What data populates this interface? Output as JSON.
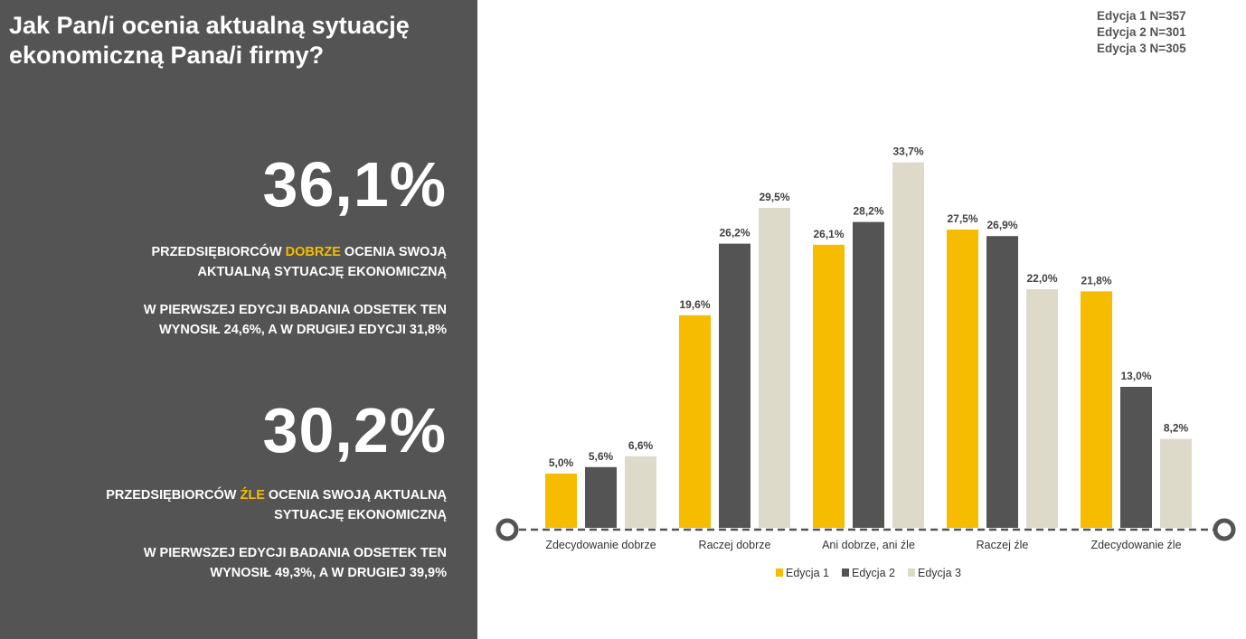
{
  "left_panel": {
    "question": "Jak Pan/i ocenia aktualną sytuację ekonomiczną Pana/i firmy?",
    "stat_good": {
      "value": "36,1%",
      "line1_pre": "PRZEDSIĘBIORCÓW ",
      "line1_highlight": "DOBRZE",
      "line1_post": " OCENIA SWOJĄ",
      "line2": "AKTUALNĄ SYTUACJĘ EKONOMICZNĄ",
      "note_line1": "W PIERWSZEJ EDYCJI BADANIA ODSETEK TEN",
      "note_line2": "WYNOSIŁ 24,6%, A W DRUGIEJ EDYCJI 31,8%"
    },
    "stat_bad": {
      "value": "30,2%",
      "line1_pre": "PRZEDSIĘBIORCÓW ",
      "line1_highlight": "ŹLE",
      "line1_post": " OCENIA SWOJĄ AKTUALNĄ",
      "line2": "SYTUACJĘ EKONOMICZNĄ",
      "note_line1": "W PIERWSZEJ EDYCJI BADANIA ODSETEK TEN",
      "note_line2": "WYNOSIŁ 49,3%, A W DRUGIEJ 39,9%"
    },
    "highlight_color": "#F5BC00",
    "panel_color": "#545454"
  },
  "sample_sizes": [
    "Edycja 1 N=357",
    "Edycja 2 N=301",
    "Edycja 3 N=305"
  ],
  "chart_data": {
    "type": "bar",
    "categories": [
      "Zdecydowanie dobrze",
      "Raczej dobrze",
      "Ani dobrze, ani źle",
      "Raczej źle",
      "Zdecydowanie źle"
    ],
    "series": [
      {
        "name": "Edycja 1",
        "color": "#F5BC00",
        "values": [
          5.0,
          19.6,
          26.1,
          27.5,
          21.8
        ],
        "labels": [
          "5,0%",
          "19,6%",
          "26,1%",
          "27,5%",
          "21,8%"
        ]
      },
      {
        "name": "Edycja 2",
        "color": "#545454",
        "values": [
          5.6,
          26.2,
          28.2,
          26.9,
          13.0
        ],
        "labels": [
          "5,6%",
          "26,2%",
          "28,2%",
          "26,9%",
          "13,0%"
        ]
      },
      {
        "name": "Edycja 3",
        "color": "#DEDACA",
        "values": [
          6.6,
          29.5,
          33.7,
          22.0,
          8.2
        ],
        "labels": [
          "6,6%",
          "29,5%",
          "33,7%",
          "22,0%",
          "8,2%"
        ]
      }
    ],
    "unit": "%",
    "ylim": [
      0,
      35
    ],
    "grid": false,
    "legend_position": "bottom"
  }
}
